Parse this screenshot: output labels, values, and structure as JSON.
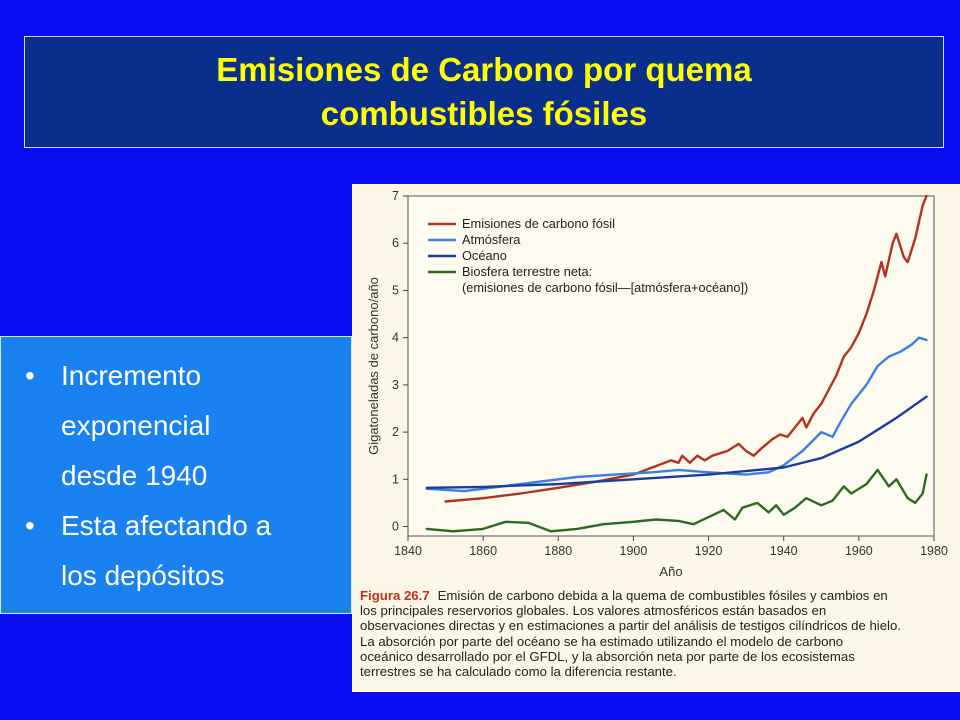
{
  "slide": {
    "title": "Emisiones de Carbono por quema\ncombustibles fósiles",
    "bullets": [
      {
        "lines": [
          "Incremento",
          "exponencial",
          "desde 1940"
        ]
      },
      {
        "lines": [
          "Esta afectando a",
          "los depósitos"
        ]
      }
    ],
    "bullet_symbol": "•"
  },
  "figure": {
    "label": "Figura 26.7",
    "caption_lines": [
      "Emisión de carbono debida a la quema de combustibles fósiles y cambios en",
      "los principales reservorios globales. Los valores atmosféricos están basados en",
      "observaciones directas y en estimaciones a partir del análisis de testigos cilíndricos de hielo.",
      "La absorción por parte del océano se ha estimado utilizando el modelo de carbono",
      "oceánico desarrollado por el GFDL, y la absorción neta por parte de los ecosistemas",
      "terrestres se ha calculado como la diferencia restante."
    ]
  },
  "colors": {
    "background": "#0a0cf2",
    "title_text": "#ffff00",
    "fossil": "#b2321f",
    "atmosphere": "#3d7fe0",
    "ocean": "#1b3d9b",
    "biosphere": "#2f6a23"
  },
  "chart_data": {
    "type": "line",
    "xlabel": "Año",
    "ylabel": "Gigatoneladas de carbono/año",
    "xlim": [
      1840,
      1980
    ],
    "ylim": [
      -0.2,
      7
    ],
    "x_ticks": [
      "1840",
      "1860",
      "1880",
      "1900",
      "1920",
      "1940",
      "1960",
      "1980"
    ],
    "y_ticks": [
      "0",
      "1",
      "2",
      "3",
      "4",
      "5",
      "6",
      "7"
    ],
    "legend_position": "top-left",
    "series": [
      {
        "name": "Emisiones de carbono fósil",
        "color_key": "fossil",
        "points": [
          [
            1850,
            0.53
          ],
          [
            1860,
            0.6
          ],
          [
            1870,
            0.7
          ],
          [
            1880,
            0.82
          ],
          [
            1890,
            0.95
          ],
          [
            1900,
            1.1
          ],
          [
            1905,
            1.25
          ],
          [
            1910,
            1.4
          ],
          [
            1912,
            1.35
          ],
          [
            1913,
            1.5
          ],
          [
            1915,
            1.35
          ],
          [
            1917,
            1.5
          ],
          [
            1919,
            1.4
          ],
          [
            1921,
            1.5
          ],
          [
            1925,
            1.6
          ],
          [
            1928,
            1.75
          ],
          [
            1930,
            1.6
          ],
          [
            1932,
            1.5
          ],
          [
            1934,
            1.65
          ],
          [
            1937,
            1.85
          ],
          [
            1939,
            1.95
          ],
          [
            1941,
            1.9
          ],
          [
            1943,
            2.1
          ],
          [
            1945,
            2.3
          ],
          [
            1946,
            2.1
          ],
          [
            1948,
            2.4
          ],
          [
            1950,
            2.6
          ],
          [
            1952,
            2.9
          ],
          [
            1954,
            3.2
          ],
          [
            1956,
            3.6
          ],
          [
            1958,
            3.8
          ],
          [
            1960,
            4.1
          ],
          [
            1962,
            4.5
          ],
          [
            1964,
            5.0
          ],
          [
            1966,
            5.6
          ],
          [
            1967,
            5.3
          ],
          [
            1969,
            6.0
          ],
          [
            1970,
            6.2
          ],
          [
            1972,
            5.7
          ],
          [
            1973,
            5.6
          ],
          [
            1975,
            6.1
          ],
          [
            1977,
            6.8
          ],
          [
            1978,
            7.0
          ]
        ]
      },
      {
        "name": "Atmósfera",
        "color_key": "atmosphere",
        "points": [
          [
            1845,
            0.8
          ],
          [
            1855,
            0.75
          ],
          [
            1865,
            0.85
          ],
          [
            1875,
            0.95
          ],
          [
            1885,
            1.05
          ],
          [
            1895,
            1.1
          ],
          [
            1905,
            1.15
          ],
          [
            1912,
            1.2
          ],
          [
            1920,
            1.15
          ],
          [
            1930,
            1.1
          ],
          [
            1936,
            1.15
          ],
          [
            1940,
            1.3
          ],
          [
            1945,
            1.6
          ],
          [
            1950,
            2.0
          ],
          [
            1953,
            1.9
          ],
          [
            1955,
            2.2
          ],
          [
            1958,
            2.6
          ],
          [
            1962,
            3.0
          ],
          [
            1965,
            3.4
          ],
          [
            1968,
            3.6
          ],
          [
            1971,
            3.7
          ],
          [
            1974,
            3.85
          ],
          [
            1976,
            4.0
          ],
          [
            1978,
            3.95
          ]
        ]
      },
      {
        "name": "Océano",
        "color_key": "ocean",
        "points": [
          [
            1845,
            0.82
          ],
          [
            1860,
            0.84
          ],
          [
            1880,
            0.9
          ],
          [
            1900,
            1.0
          ],
          [
            1920,
            1.1
          ],
          [
            1940,
            1.25
          ],
          [
            1950,
            1.45
          ],
          [
            1960,
            1.8
          ],
          [
            1970,
            2.3
          ],
          [
            1978,
            2.75
          ]
        ]
      },
      {
        "name": "Biosfera terrestre neta:\n(emisiones de carbono fósil—[atmósfera+océano])",
        "color_key": "biosphere",
        "points": [
          [
            1845,
            -0.05
          ],
          [
            1852,
            -0.1
          ],
          [
            1860,
            -0.05
          ],
          [
            1866,
            0.1
          ],
          [
            1872,
            0.08
          ],
          [
            1878,
            -0.1
          ],
          [
            1885,
            -0.05
          ],
          [
            1892,
            0.05
          ],
          [
            1900,
            0.1
          ],
          [
            1906,
            0.15
          ],
          [
            1912,
            0.12
          ],
          [
            1916,
            0.05
          ],
          [
            1920,
            0.2
          ],
          [
            1924,
            0.35
          ],
          [
            1927,
            0.15
          ],
          [
            1929,
            0.4
          ],
          [
            1933,
            0.5
          ],
          [
            1936,
            0.3
          ],
          [
            1938,
            0.45
          ],
          [
            1940,
            0.25
          ],
          [
            1943,
            0.4
          ],
          [
            1946,
            0.6
          ],
          [
            1950,
            0.45
          ],
          [
            1953,
            0.55
          ],
          [
            1956,
            0.85
          ],
          [
            1958,
            0.7
          ],
          [
            1962,
            0.9
          ],
          [
            1965,
            1.2
          ],
          [
            1968,
            0.85
          ],
          [
            1970,
            1.0
          ],
          [
            1973,
            0.6
          ],
          [
            1975,
            0.5
          ],
          [
            1977,
            0.7
          ],
          [
            1978,
            1.1
          ]
        ]
      }
    ]
  }
}
